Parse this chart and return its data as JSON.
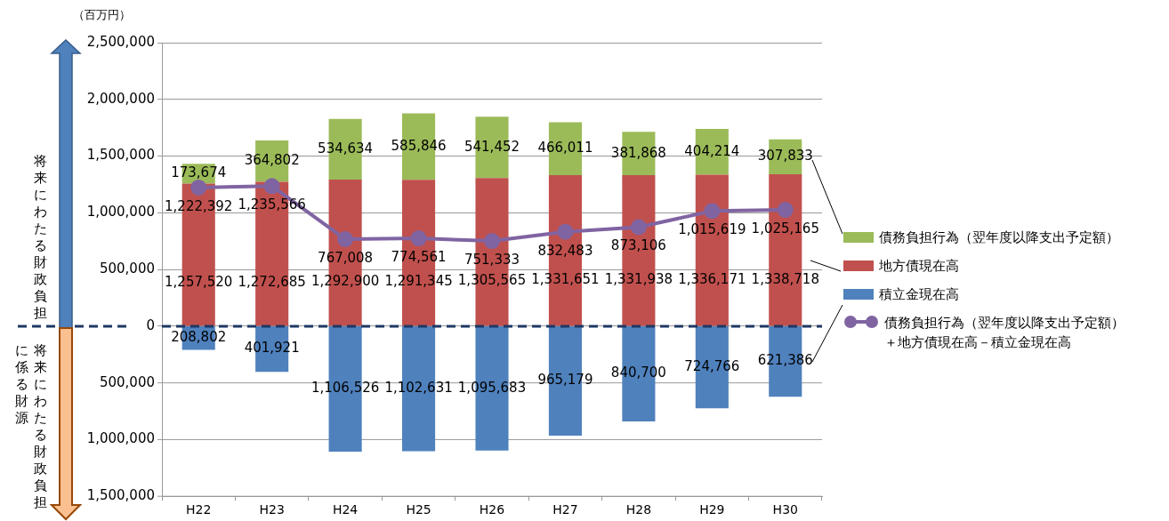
{
  "chart_data": {
    "type": "bar",
    "stacked": true,
    "annotations": [
      "将来にわたる財政負担",
      "将来にわたる財政負担に係る財源",
      "（百万円）"
    ],
    "categories": [
      "H22",
      "H23",
      "H24",
      "H25",
      "H26",
      "H27",
      "H28",
      "H29",
      "H30"
    ],
    "series": [
      {
        "name": "積立金現在高",
        "axis": "y2",
        "color": "#4f81bd",
        "values": [
          208802,
          401921,
          1106526,
          1102631,
          1095683,
          965179,
          840700,
          724766,
          621386
        ],
        "value_labels": [
          "208,802",
          "401,921",
          "1,106,526",
          "1,102,631",
          "1,095,683",
          "965,179",
          "840,700",
          "724,766",
          "621,386"
        ]
      },
      {
        "name": "地方債現在高",
        "color": "#c0504d",
        "values": [
          1257520,
          1272685,
          1292900,
          1291345,
          1305565,
          1331651,
          1331938,
          1336171,
          1338718
        ],
        "value_labels": [
          "1,257,520",
          "1,272,685",
          "1,292,900",
          "1,291,345",
          "1,305,565",
          "1,331,651",
          "1,331,938",
          "1,336,171",
          "1,338,718"
        ]
      },
      {
        "name": "債務負担行為（翌年度以降支出予定額）",
        "color": "#9bbb59",
        "values": [
          173674,
          364802,
          534634,
          585846,
          541452,
          466011,
          381868,
          404214,
          307833
        ],
        "value_labels": [
          "173,674",
          "364,802",
          "534,634",
          "585,846",
          "541,452",
          "466,011",
          "381,868",
          "404,214",
          "307,833"
        ]
      },
      {
        "name": "債務負担行為（翌年度以降支出予定額）＋地方債現在高－積立金現在高",
        "type": "line",
        "color": "#8064a2",
        "marker": "circle",
        "values": [
          1222392,
          1235566,
          767008,
          774561,
          751333,
          832483,
          873106,
          1015619,
          1025165
        ],
        "value_labels": [
          "1,222,392",
          "1,235,566",
          "767,008",
          "774,561",
          "751,333",
          "832,483",
          "873,106",
          "1,015,619",
          "1,025,165"
        ]
      }
    ],
    "ylim": [
      -1500000,
      2500000
    ],
    "y2lim": [
      1500000,
      -2500000
    ],
    "y2ticks": [
      {
        "value": 500000,
        "label": "500,000"
      },
      {
        "value": 1000000,
        "label": "1,000,000"
      },
      {
        "value": 1500000,
        "label": "1,500,000"
      }
    ],
    "yticks": [
      {
        "value": 0,
        "label": "0"
      },
      {
        "value": 500000,
        "label": "500,000"
      },
      {
        "value": 1000000,
        "label": "1,000,000"
      },
      {
        "value": 1500000,
        "label": "1,500,000"
      },
      {
        "value": 2000000,
        "label": "2,000,000"
      },
      {
        "value": 2500000,
        "label": "2,500,000"
      }
    ],
    "grid": "y",
    "legend": "right",
    "ref_lines": [
      {
        "axis": "y",
        "value": 0,
        "color": "#1f3864",
        "line_style": "dashed"
      }
    ]
  }
}
